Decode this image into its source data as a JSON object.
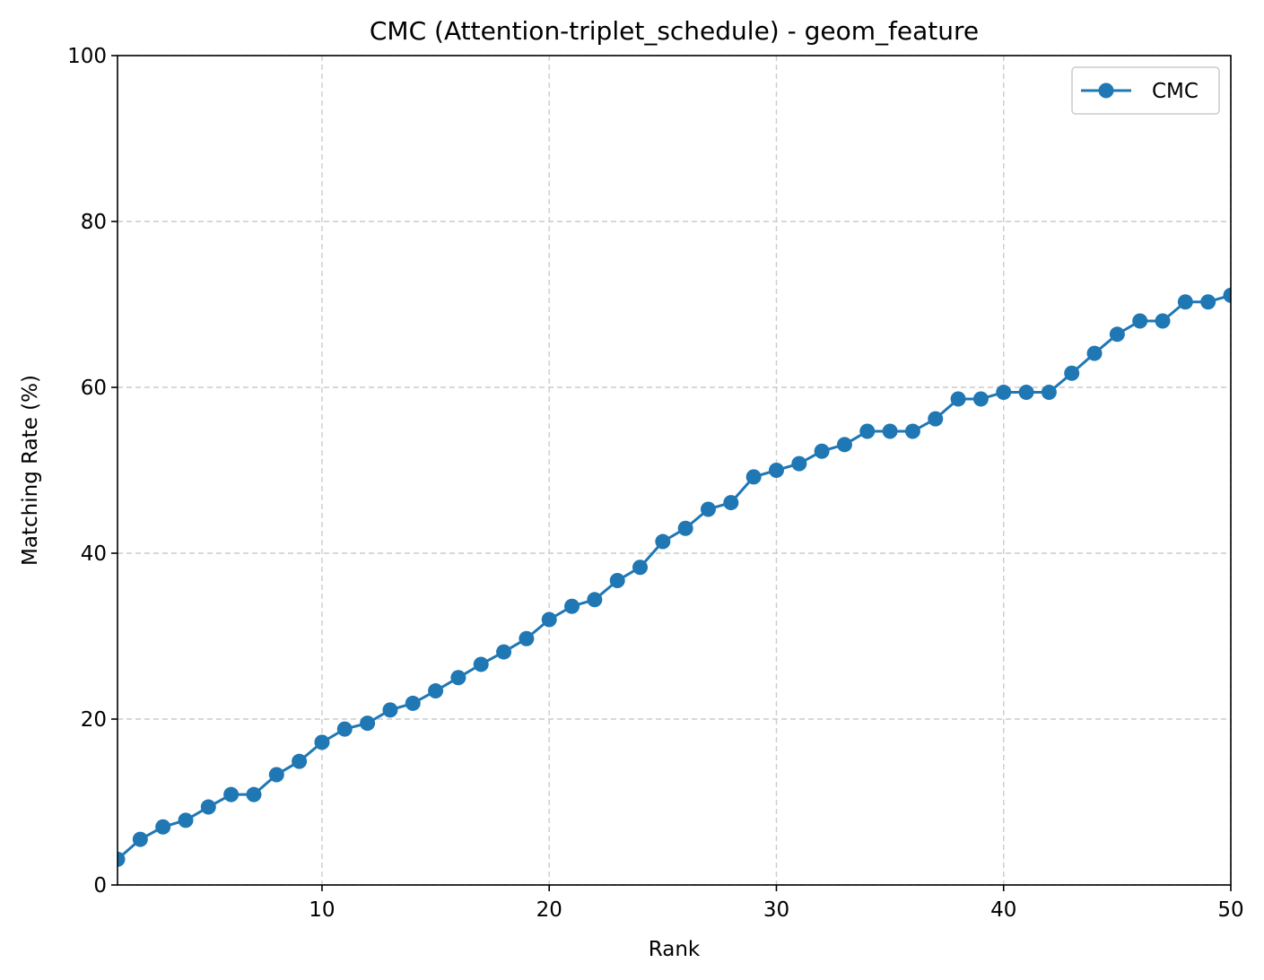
{
  "chart_data": {
    "type": "line",
    "title": "CMC (Attention-triplet_schedule) - geom_feature",
    "xlabel": "Rank",
    "ylabel": "Matching Rate (%)",
    "xlim": [
      1,
      50
    ],
    "ylim": [
      0,
      100
    ],
    "xticks": [
      10,
      20,
      30,
      40,
      50
    ],
    "yticks": [
      0,
      20,
      40,
      60,
      80,
      100
    ],
    "grid": true,
    "grid_style": "dashed",
    "legend_position": "top-right",
    "colors": {
      "series": "#1f77b4",
      "grid": "#cccccc",
      "axis": "#000000"
    },
    "x": [
      1,
      2,
      3,
      4,
      5,
      6,
      7,
      8,
      9,
      10,
      11,
      12,
      13,
      14,
      15,
      16,
      17,
      18,
      19,
      20,
      21,
      22,
      23,
      24,
      25,
      26,
      27,
      28,
      29,
      30,
      31,
      32,
      33,
      34,
      35,
      36,
      37,
      38,
      39,
      40,
      41,
      42,
      43,
      44,
      45,
      46,
      47,
      48,
      49,
      50
    ],
    "series": [
      {
        "name": "CMC",
        "marker": "circle",
        "values": [
          3.1,
          5.5,
          7.0,
          7.8,
          9.4,
          10.9,
          10.9,
          13.3,
          14.9,
          17.2,
          18.8,
          19.5,
          21.1,
          21.9,
          23.4,
          25.0,
          26.6,
          28.1,
          29.7,
          32.0,
          33.6,
          34.4,
          36.7,
          38.3,
          41.4,
          43.0,
          45.3,
          46.1,
          49.2,
          50.0,
          50.8,
          52.3,
          53.1,
          54.7,
          54.7,
          54.7,
          56.2,
          58.6,
          58.6,
          59.4,
          59.4,
          59.4,
          61.7,
          64.1,
          66.4,
          68.0,
          68.0,
          70.3,
          70.3,
          71.1
        ]
      }
    ]
  }
}
